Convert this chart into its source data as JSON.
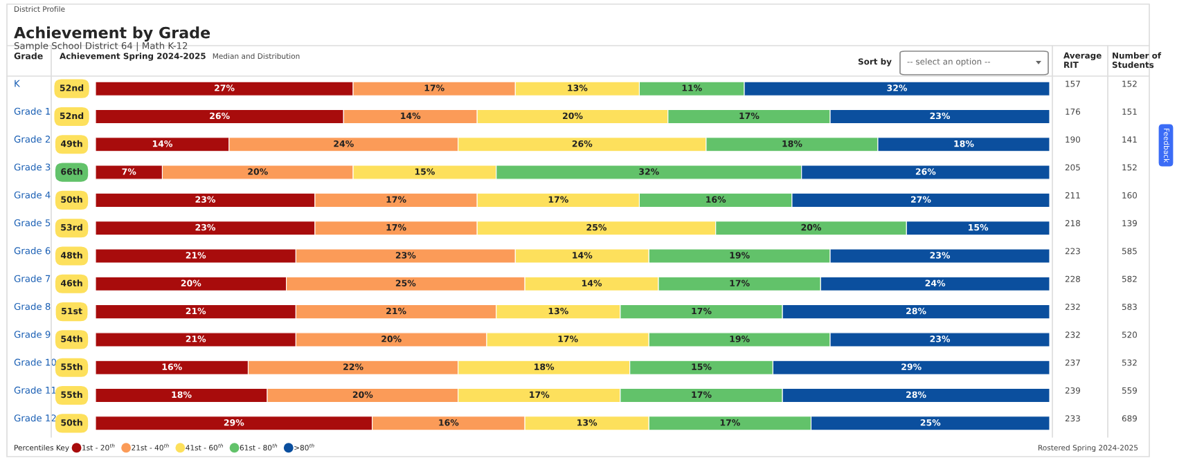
{
  "chart_data": {
    "type": "bar",
    "orientation": "horizontal",
    "stacked": true,
    "title": "Achievement by Grade",
    "subtitle": "Sample School District 64 | Math K-12",
    "ylabel": "Grade",
    "legend_title": "Percentiles Key",
    "legend": "bottom left",
    "tick_labels": "y",
    "data_labels": true,
    "categories": [
      "K",
      "Grade 1",
      "Grade 2",
      "Grade 3",
      "Grade 4",
      "Grade 5",
      "Grade 6",
      "Grade 7",
      "Grade 8",
      "Grade 9",
      "Grade 10",
      "Grade 11",
      "Grade 12"
    ],
    "series": [
      {
        "name": "1st - 20$^{th}$",
        "color": "#a80c0c",
        "values": [
          27,
          26,
          14,
          7,
          23,
          23,
          21,
          20,
          21,
          21,
          16,
          18,
          29
        ],
        "value_labels": [
          "27%",
          "26%",
          "14%",
          "7%",
          "23%",
          "23%",
          "21%",
          "20%",
          "21%",
          "21%",
          "16%",
          "18%",
          "29%"
        ]
      },
      {
        "name": "21st - 40$^{th}$",
        "color": "#fb9b58",
        "values": [
          17,
          14,
          24,
          20,
          17,
          17,
          23,
          25,
          21,
          20,
          22,
          20,
          16
        ],
        "value_labels": [
          "17%",
          "14%",
          "24%",
          "20%",
          "17%",
          "17%",
          "23%",
          "25%",
          "21%",
          "20%",
          "22%",
          "20%",
          "16%"
        ]
      },
      {
        "name": "41st - 60$^{th}$",
        "color": "#fde05c",
        "values": [
          13,
          20,
          26,
          15,
          17,
          25,
          14,
          14,
          13,
          17,
          18,
          17,
          13
        ],
        "value_labels": [
          "13%",
          "20%",
          "26%",
          "15%",
          "17%",
          "25%",
          "14%",
          "14%",
          "13%",
          "17%",
          "18%",
          "17%",
          "13%"
        ]
      },
      {
        "name": "61st - 80$^{th}$",
        "color": "#62c26a",
        "values": [
          11,
          17,
          18,
          32,
          16,
          20,
          19,
          17,
          17,
          19,
          15,
          17,
          17
        ],
        "value_labels": [
          "11%",
          "17%",
          "18%",
          "32%",
          "16%",
          "20%",
          "19%",
          "17%",
          "17%",
          "19%",
          "15%",
          "17%",
          "17%"
        ]
      },
      {
        "name": ">80$^{th}$",
        "color": "#0b4f9e",
        "values": [
          32,
          23,
          18,
          26,
          27,
          15,
          23,
          24,
          28,
          23,
          29,
          28,
          25
        ],
        "value_labels": [
          "32%",
          "23%",
          "18%",
          "26%",
          "27%",
          "15%",
          "23%",
          "24%",
          "28%",
          "23%",
          "29%",
          "28%",
          "25%"
        ]
      }
    ],
    "annotations": [
      "District Profile",
      "Achievement Spring 2024-2025",
      "Median and Distribution",
      "Sort by",
      "-- select an option --",
      "Average RIT",
      "Number of Students",
      "Rostered Spring 2024-2025",
      "Feedback",
      "52nd",
      "157",
      "152",
      "52nd",
      "176",
      "151",
      "49th",
      "190",
      "141",
      "66th",
      "205",
      "152",
      "50th",
      "211",
      "160",
      "53rd",
      "218",
      "139",
      "48th",
      "223",
      "585",
      "46th",
      "228",
      "582",
      "51st",
      "232",
      "583",
      "54th",
      "232",
      "520",
      "55th",
      "237",
      "532",
      "55th",
      "239",
      "559",
      "50th",
      "233",
      "689"
    ]
  }
}
